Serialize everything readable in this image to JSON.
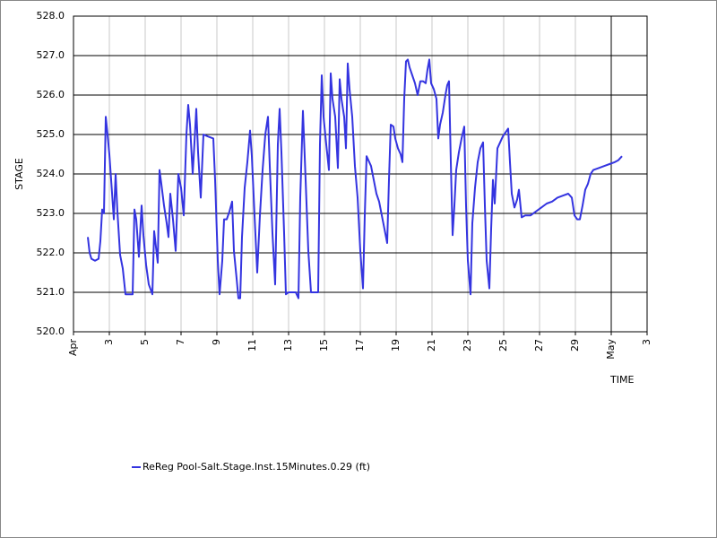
{
  "chart_data": {
    "type": "line",
    "y_label": "STAGE",
    "x_label": "TIME",
    "xlim": [
      1,
      33
    ],
    "xticks": [
      {
        "value": 1,
        "label": "Apr"
      },
      3,
      5,
      7,
      9,
      11,
      13,
      15,
      17,
      19,
      21,
      23,
      25,
      27,
      29,
      {
        "value": 31,
        "label": "May"
      },
      {
        "value": 33,
        "label": "3"
      }
    ],
    "ylim": [
      520,
      528
    ],
    "yticks": [
      {
        "value": 520,
        "label": "520.0"
      },
      {
        "value": 521,
        "label": "521.0"
      },
      {
        "value": 522,
        "label": "522.0"
      },
      {
        "value": 523,
        "label": "523.0"
      },
      {
        "value": 524,
        "label": "524.0"
      },
      {
        "value": 525,
        "label": "525.0"
      },
      {
        "value": 526,
        "label": "526.0"
      },
      {
        "value": 527,
        "label": "527.0"
      },
      {
        "value": 528,
        "label": "528.0"
      }
    ],
    "grid": true,
    "legend": "bottom",
    "x": [
      1.8,
      1.9,
      2.0,
      2.2,
      2.4,
      2.5,
      2.6,
      2.7,
      2.8,
      2.9,
      3.0,
      3.1,
      3.25,
      3.35,
      3.45,
      3.6,
      3.75,
      3.9,
      4.05,
      4.3,
      4.4,
      4.5,
      4.65,
      4.8,
      4.9,
      5.05,
      5.2,
      5.4,
      5.5,
      5.6,
      5.7,
      5.8,
      5.9,
      6.05,
      6.2,
      6.3,
      6.4,
      6.55,
      6.7,
      6.85,
      7.0,
      7.15,
      7.3,
      7.4,
      7.5,
      7.65,
      7.75,
      7.85,
      7.95,
      8.1,
      8.25,
      8.5,
      8.8,
      8.9,
      9.05,
      9.15,
      9.3,
      9.4,
      9.55,
      9.7,
      9.85,
      9.95,
      10.1,
      10.2,
      10.3,
      10.4,
      10.55,
      10.7,
      10.85,
      10.95,
      11.1,
      11.25,
      11.4,
      11.55,
      11.7,
      11.85,
      11.95,
      12.1,
      12.25,
      12.4,
      12.5,
      12.6,
      12.75,
      12.85,
      13.0,
      13.2,
      13.4,
      13.55,
      13.65,
      13.8,
      13.95,
      14.1,
      14.25,
      14.5,
      14.65,
      14.75,
      14.85,
      14.95,
      15.1,
      15.25,
      15.35,
      15.45,
      15.6,
      15.75,
      15.85,
      15.95,
      16.1,
      16.2,
      16.3,
      16.4,
      16.55,
      16.7,
      16.85,
      17.0,
      17.15,
      17.25,
      17.35,
      17.45,
      17.6,
      17.75,
      17.9,
      18.05,
      18.2,
      18.35,
      18.5,
      18.6,
      18.7,
      18.85,
      18.95,
      19.1,
      19.25,
      19.35,
      19.45,
      19.55,
      19.65,
      19.75,
      19.9,
      20.05,
      20.2,
      20.35,
      20.5,
      20.65,
      20.75,
      20.85,
      20.95,
      21.1,
      21.25,
      21.35,
      21.45,
      21.6,
      21.75,
      21.85,
      21.95,
      22.05,
      22.15,
      22.25,
      22.35,
      22.5,
      22.65,
      22.8,
      22.9,
      23.0,
      23.15,
      23.25,
      23.4,
      23.55,
      23.7,
      23.85,
      23.95,
      24.05,
      24.2,
      24.3,
      24.4,
      24.5,
      24.65,
      24.8,
      24.95,
      25.1,
      25.25,
      25.35,
      25.45,
      25.6,
      25.75,
      25.85,
      26.0,
      26.2,
      26.5,
      26.8,
      27.1,
      27.4,
      27.7,
      28.0,
      28.3,
      28.6,
      28.8,
      28.95,
      29.1,
      29.25,
      29.4,
      29.55,
      29.7,
      29.85,
      30.0,
      30.3,
      30.6,
      30.9,
      31.2,
      31.4,
      31.6
    ],
    "series": [
      {
        "name": "ReReg Pool-Salt.Stage.Inst.15Minutes.0.29 (ft)",
        "color": "#3434e0",
        "values": [
          522.4,
          522.0,
          521.85,
          521.8,
          521.85,
          522.3,
          523.1,
          523.0,
          525.45,
          525.0,
          524.5,
          523.85,
          522.85,
          524.0,
          523.05,
          521.95,
          521.6,
          520.95,
          520.95,
          520.95,
          523.1,
          522.85,
          521.9,
          523.2,
          522.45,
          521.7,
          521.2,
          520.95,
          522.55,
          522.15,
          521.75,
          524.1,
          523.75,
          523.2,
          522.75,
          522.4,
          523.5,
          522.85,
          522.05,
          524.0,
          523.65,
          522.95,
          525.0,
          525.75,
          525.25,
          524.0,
          524.8,
          525.65,
          524.55,
          523.4,
          525.0,
          524.95,
          524.9,
          523.85,
          521.8,
          520.95,
          521.8,
          522.85,
          522.85,
          523.05,
          523.3,
          522.05,
          521.35,
          520.85,
          520.85,
          522.4,
          523.65,
          524.3,
          525.1,
          524.45,
          522.95,
          521.5,
          522.95,
          524.1,
          525.0,
          525.45,
          524.2,
          522.5,
          521.2,
          524.75,
          525.65,
          524.55,
          522.5,
          520.95,
          521.0,
          521.0,
          521.0,
          520.85,
          523.4,
          525.6,
          523.85,
          522.05,
          521.0,
          521.0,
          521.0,
          524.75,
          526.5,
          525.45,
          524.75,
          524.1,
          526.55,
          525.9,
          525.45,
          524.15,
          526.4,
          525.9,
          525.45,
          524.65,
          526.8,
          526.15,
          525.45,
          524.2,
          523.4,
          522.05,
          521.1,
          522.95,
          524.45,
          524.35,
          524.2,
          523.85,
          523.5,
          523.3,
          522.95,
          522.6,
          522.25,
          523.85,
          525.25,
          525.2,
          524.9,
          524.65,
          524.5,
          524.3,
          525.9,
          526.85,
          526.9,
          526.7,
          526.5,
          526.3,
          526.0,
          526.35,
          526.35,
          526.3,
          526.65,
          526.9,
          526.3,
          526.15,
          525.9,
          524.9,
          525.25,
          525.55,
          526.0,
          526.25,
          526.35,
          524.3,
          522.45,
          523.2,
          524.1,
          524.55,
          524.9,
          525.2,
          523.2,
          521.8,
          520.95,
          522.75,
          523.65,
          524.3,
          524.65,
          524.8,
          523.2,
          521.8,
          521.1,
          522.6,
          523.85,
          523.25,
          524.65,
          524.8,
          524.95,
          525.05,
          525.15,
          524.3,
          523.5,
          523.15,
          523.35,
          523.6,
          522.9,
          522.95,
          522.95,
          523.05,
          523.15,
          523.25,
          523.3,
          523.4,
          523.45,
          523.5,
          523.4,
          522.95,
          522.85,
          522.85,
          523.2,
          523.6,
          523.75,
          524.0,
          524.1,
          524.15,
          524.2,
          524.25,
          524.3,
          524.35,
          524.45
        ]
      }
    ]
  }
}
